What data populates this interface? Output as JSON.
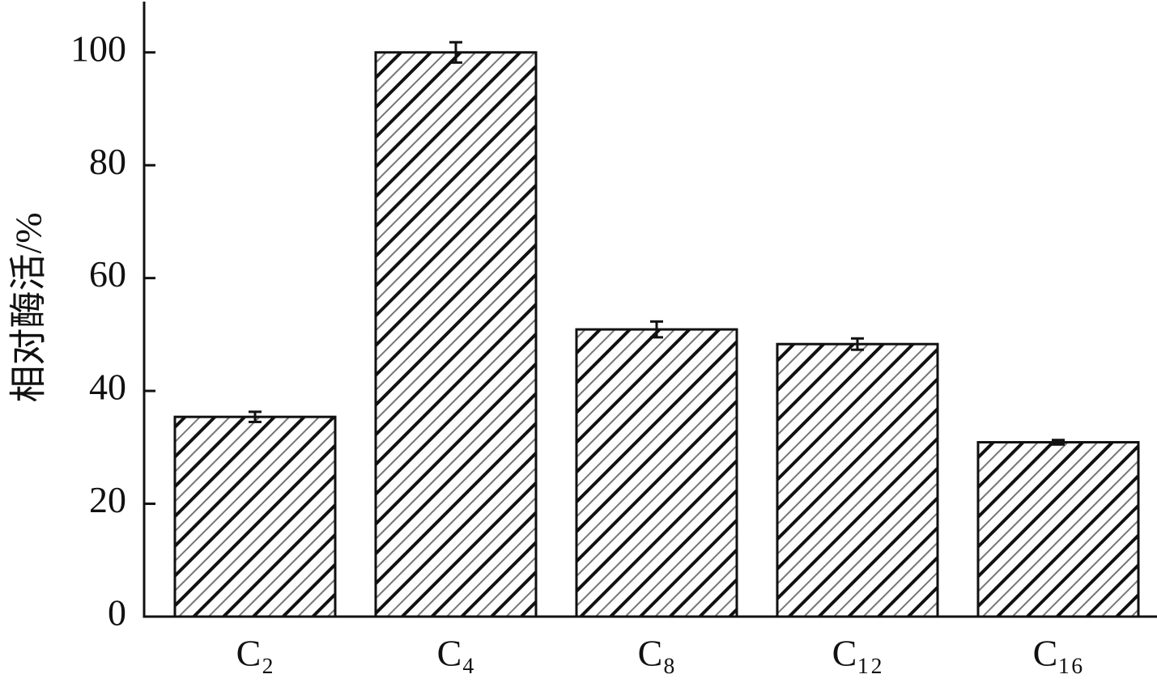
{
  "chart_data": {
    "type": "bar",
    "y_label": "相对酶活/%",
    "categories": [
      "C₂",
      "C₄",
      "C₈",
      "C₁₂",
      "C₁₆"
    ],
    "values": [
      35.4,
      100,
      50.9,
      48.3,
      30.9
    ],
    "errors": [
      0.9,
      1.8,
      1.4,
      1.0,
      0.4
    ],
    "ylim": [
      0,
      109
    ],
    "yticks": [
      0,
      20,
      40,
      60,
      80,
      100
    ]
  }
}
